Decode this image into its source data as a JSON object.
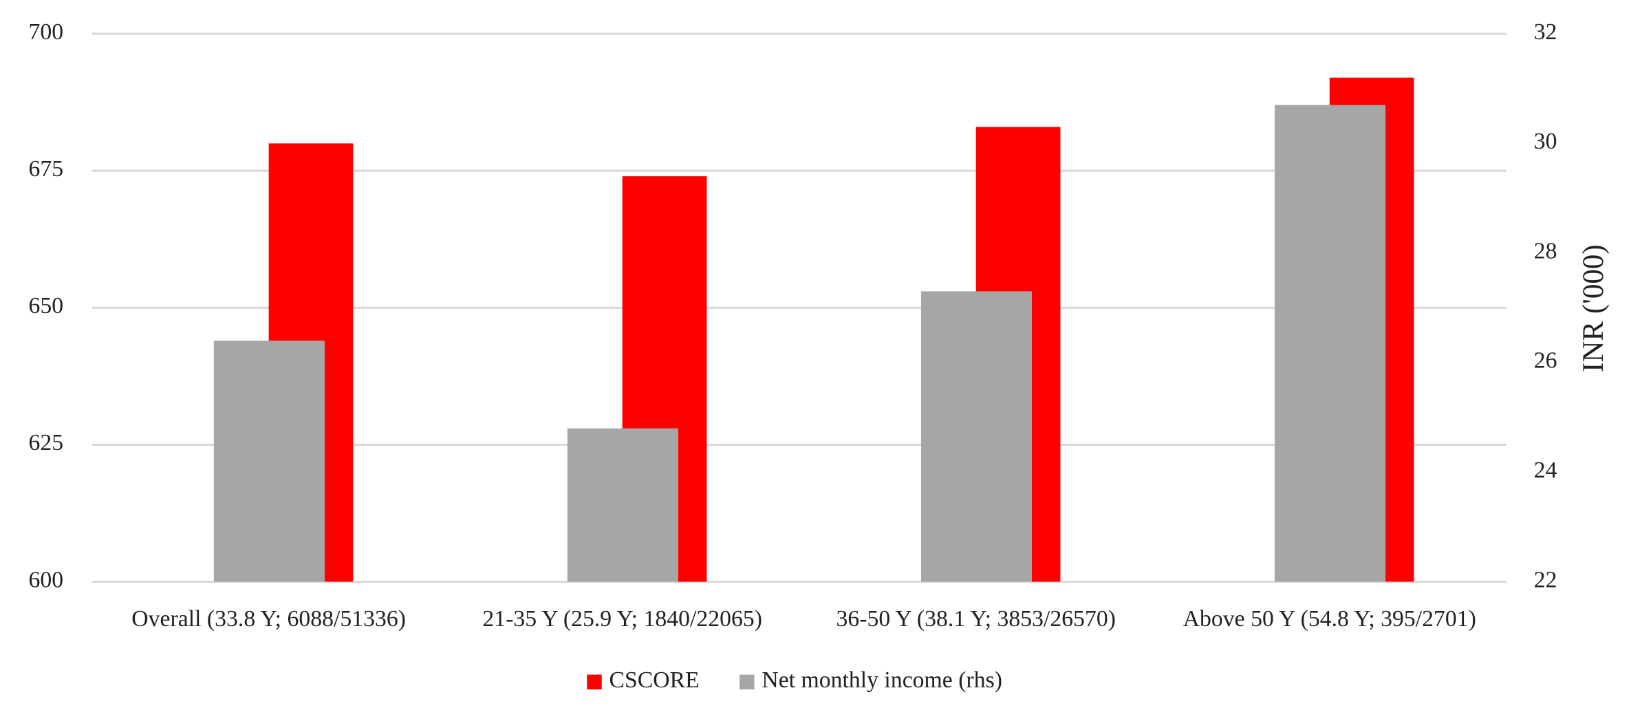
{
  "chart_data": {
    "type": "bar",
    "categories": [
      "Overall (33.8 Y; 6088/51336)",
      "21-35 Y (25.9 Y; 1840/22065)",
      "36-50 Y (38.1 Y; 3853/26570)",
      "Above 50 Y (54.8 Y; 395/2701)"
    ],
    "series": [
      {
        "name": "CSCORE",
        "color": "#ff0000",
        "values": [
          680,
          674,
          683,
          692
        ]
      },
      {
        "name": "Net monthly income (rhs)",
        "color": "#a6a6a6",
        "axis": "y2",
        "values": [
          26.4,
          24.8,
          27.3,
          30.7
        ]
      }
    ],
    "ylim": [
      600,
      700
    ],
    "yticks": [
      600,
      625,
      650,
      675,
      700
    ],
    "y2lim": [
      22,
      32
    ],
    "y2ticks": [
      22,
      24,
      26,
      28,
      30,
      32
    ],
    "y2label": "INR ('000)",
    "grid": true,
    "legend": "bottom"
  }
}
